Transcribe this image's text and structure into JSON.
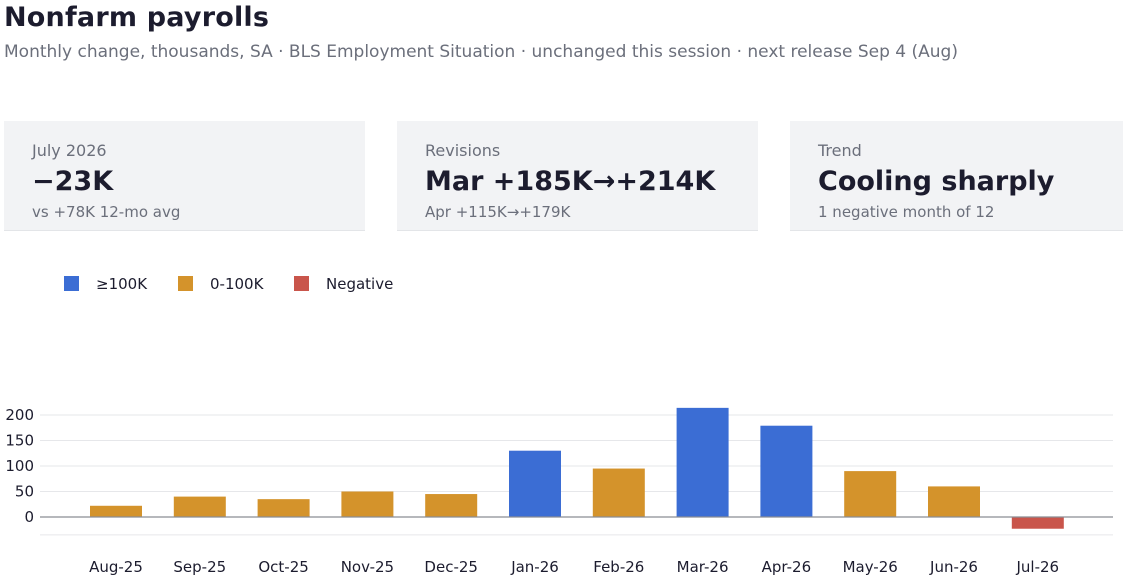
{
  "header": {
    "title": "Nonfarm payrolls",
    "subtitle": "Monthly change, thousands, SA · BLS Employment Situation · unchanged this session · next release Sep 4 (Aug)"
  },
  "cards": [
    {
      "label": "July 2026",
      "value": "−23K",
      "note": "vs +78K 12-mo avg"
    },
    {
      "label": "Revisions",
      "value": "Mar +185K→+214K",
      "note": "Apr +115K→+179K"
    },
    {
      "label": "Trend",
      "value": "Cooling sharply",
      "note": "1 negative month of 12"
    }
  ],
  "chart_data": {
    "type": "bar",
    "categories": [
      "Aug-25",
      "Sep-25",
      "Oct-25",
      "Nov-25",
      "Dec-25",
      "Jan-26",
      "Feb-26",
      "Mar-26",
      "Apr-26",
      "May-26",
      "Jun-26",
      "Jul-26"
    ],
    "values": [
      22,
      40,
      35,
      50,
      45,
      130,
      95,
      214,
      179,
      90,
      60,
      -23
    ],
    "ylim": [
      -35,
      220
    ],
    "yticks": [
      0,
      50,
      100,
      150,
      200
    ],
    "grid": true,
    "legend": {
      "placement": "top-left",
      "entries": [
        {
          "name": "≥100K",
          "color": "#3b6dd4"
        },
        {
          "name": "0-100K",
          "color": "#d4932b"
        },
        {
          "name": "Negative",
          "color": "#c9554b"
        }
      ]
    },
    "colors": {
      "high": "#3b6dd4",
      "mid": "#d4932b",
      "negative": "#c9554b"
    }
  }
}
